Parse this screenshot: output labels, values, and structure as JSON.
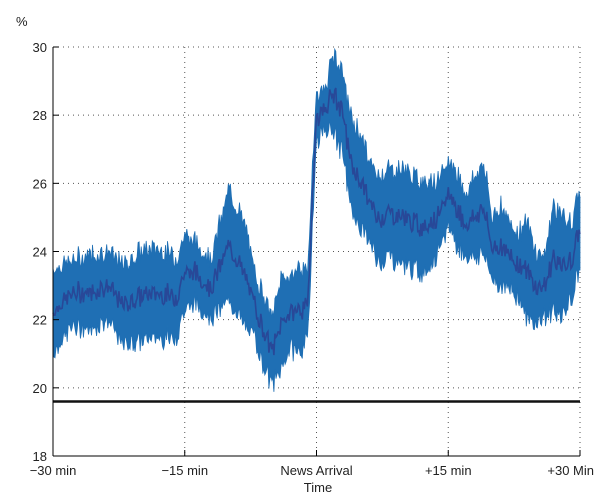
{
  "chart_data": {
    "type": "area",
    "title": "",
    "unit_label": "%",
    "xlabel": "Time",
    "ylabel": "",
    "x_minutes": [
      -30,
      -28,
      -26,
      -24,
      -22,
      -20,
      -18,
      -16,
      -15,
      -14,
      -12,
      -10,
      -9,
      -8,
      -7,
      -6,
      -5,
      -4,
      -3,
      -2,
      -1,
      -0.3,
      0,
      1,
      2,
      3,
      4,
      5,
      6,
      7,
      8,
      10,
      12,
      13,
      14,
      15,
      16,
      17,
      18,
      19,
      20,
      21,
      22,
      23,
      24,
      25,
      26,
      27,
      28,
      29,
      30
    ],
    "x_ticks": [
      {
        "value": -30,
        "label": "−30 min"
      },
      {
        "value": -15,
        "label": "−15 min"
      },
      {
        "value": 0,
        "label": "News Arrival"
      },
      {
        "value": 15,
        "label": "+15 min"
      },
      {
        "value": 30,
        "label": "+30 Min"
      }
    ],
    "y_ticks": [
      18,
      20,
      22,
      24,
      26,
      28,
      30
    ],
    "ylim": [
      18,
      30
    ],
    "xlim": [
      -30,
      30
    ],
    "grid": true,
    "series": [
      {
        "upper": [
          23.5,
          23.7,
          23.9,
          24.0,
          23.6,
          24.0,
          24.1,
          23.8,
          24.5,
          24.3,
          23.8,
          25.8,
          25.3,
          24.6,
          23.3,
          22.8,
          22.0,
          23.3,
          23.2,
          23.6,
          23.3,
          27.5,
          28.5,
          28.8,
          29.8,
          29.2,
          27.8,
          27.5,
          26.6,
          26.2,
          26.4,
          26.4,
          26.0,
          26.2,
          26.0,
          26.7,
          26.3,
          25.7,
          26.2,
          26.6,
          25.0,
          25.4,
          24.8,
          24.6,
          24.8,
          24.0,
          23.9,
          25.4,
          25.0,
          24.8,
          25.8
        ],
        "lower": [
          21.0,
          21.8,
          21.7,
          22.0,
          21.3,
          21.4,
          21.5,
          21.5,
          22.3,
          22.5,
          22.1,
          22.5,
          22.3,
          21.7,
          21.5,
          20.6,
          20.1,
          20.5,
          21.2,
          21.1,
          21.3,
          25.8,
          27.3,
          27.6,
          27.5,
          26.8,
          25.2,
          24.7,
          24.3,
          23.7,
          23.9,
          23.6,
          23.4,
          23.6,
          24.0,
          24.8,
          24.2,
          23.9,
          23.8,
          24.0,
          23.2,
          23.0,
          22.9,
          22.7,
          22.0,
          21.9,
          22.1,
          22.3,
          22.0,
          22.6,
          23.5
        ],
        "color": "#1f6fb4",
        "center_color": "#2a3f91"
      }
    ],
    "reference_line": {
      "value": 19.6,
      "color": "#111111"
    }
  }
}
